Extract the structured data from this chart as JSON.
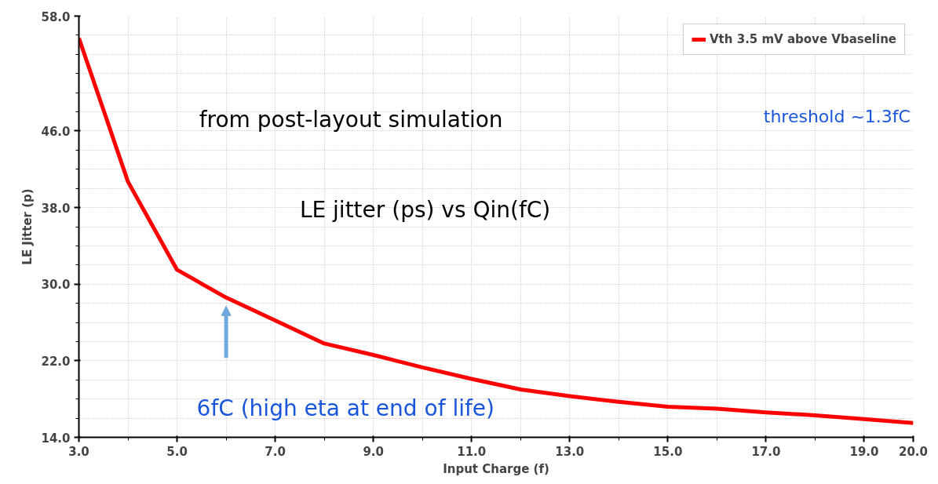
{
  "chart_data": {
    "type": "line",
    "xlabel": "Input Charge (f)",
    "ylabel": "LE Jitter (p)",
    "x": [
      3,
      4,
      5,
      6,
      7,
      8,
      9,
      10,
      11,
      12,
      13,
      14,
      15,
      16,
      17,
      18,
      19,
      20
    ],
    "series": [
      {
        "name": "Vth 3.5 mV above Vbaseline",
        "color": "#ff0000",
        "values": [
          55.7,
          40.7,
          31.5,
          28.6,
          26.2,
          23.8,
          22.6,
          21.3,
          20.1,
          19.0,
          18.3,
          17.7,
          17.2,
          17.0,
          16.6,
          16.3,
          15.9,
          15.5
        ]
      }
    ],
    "xlim": [
      3,
      20
    ],
    "ylim": [
      14,
      58
    ],
    "xticks": [
      {
        "value": 3,
        "label": "3.0"
      },
      {
        "value": 5,
        "label": "5.0"
      },
      {
        "value": 7,
        "label": "7.0"
      },
      {
        "value": 9,
        "label": "9.0"
      },
      {
        "value": 11,
        "label": "11.0"
      },
      {
        "value": 13,
        "label": "13.0"
      },
      {
        "value": 15,
        "label": "15.0"
      },
      {
        "value": 17,
        "label": "17.0"
      },
      {
        "value": 19,
        "label": "19.0"
      },
      {
        "value": 20,
        "label": "20.0"
      }
    ],
    "yticks": [
      {
        "value": 14,
        "label": "14.0"
      },
      {
        "value": 22,
        "label": "22.0"
      },
      {
        "value": 30,
        "label": "30.0"
      },
      {
        "value": 38,
        "label": "38.0"
      },
      {
        "value": 46,
        "label": "46.0"
      },
      {
        "value": 58,
        "label": "58.0"
      }
    ],
    "grid": true,
    "legend": "top right",
    "marker": "none",
    "line_style": "solid",
    "annotations": [
      "from post-layout simulation",
      "LE jitter (ps) vs Qin(fC)",
      "threshold ~1.3fC",
      "6fC (high eta at end of life)"
    ]
  }
}
